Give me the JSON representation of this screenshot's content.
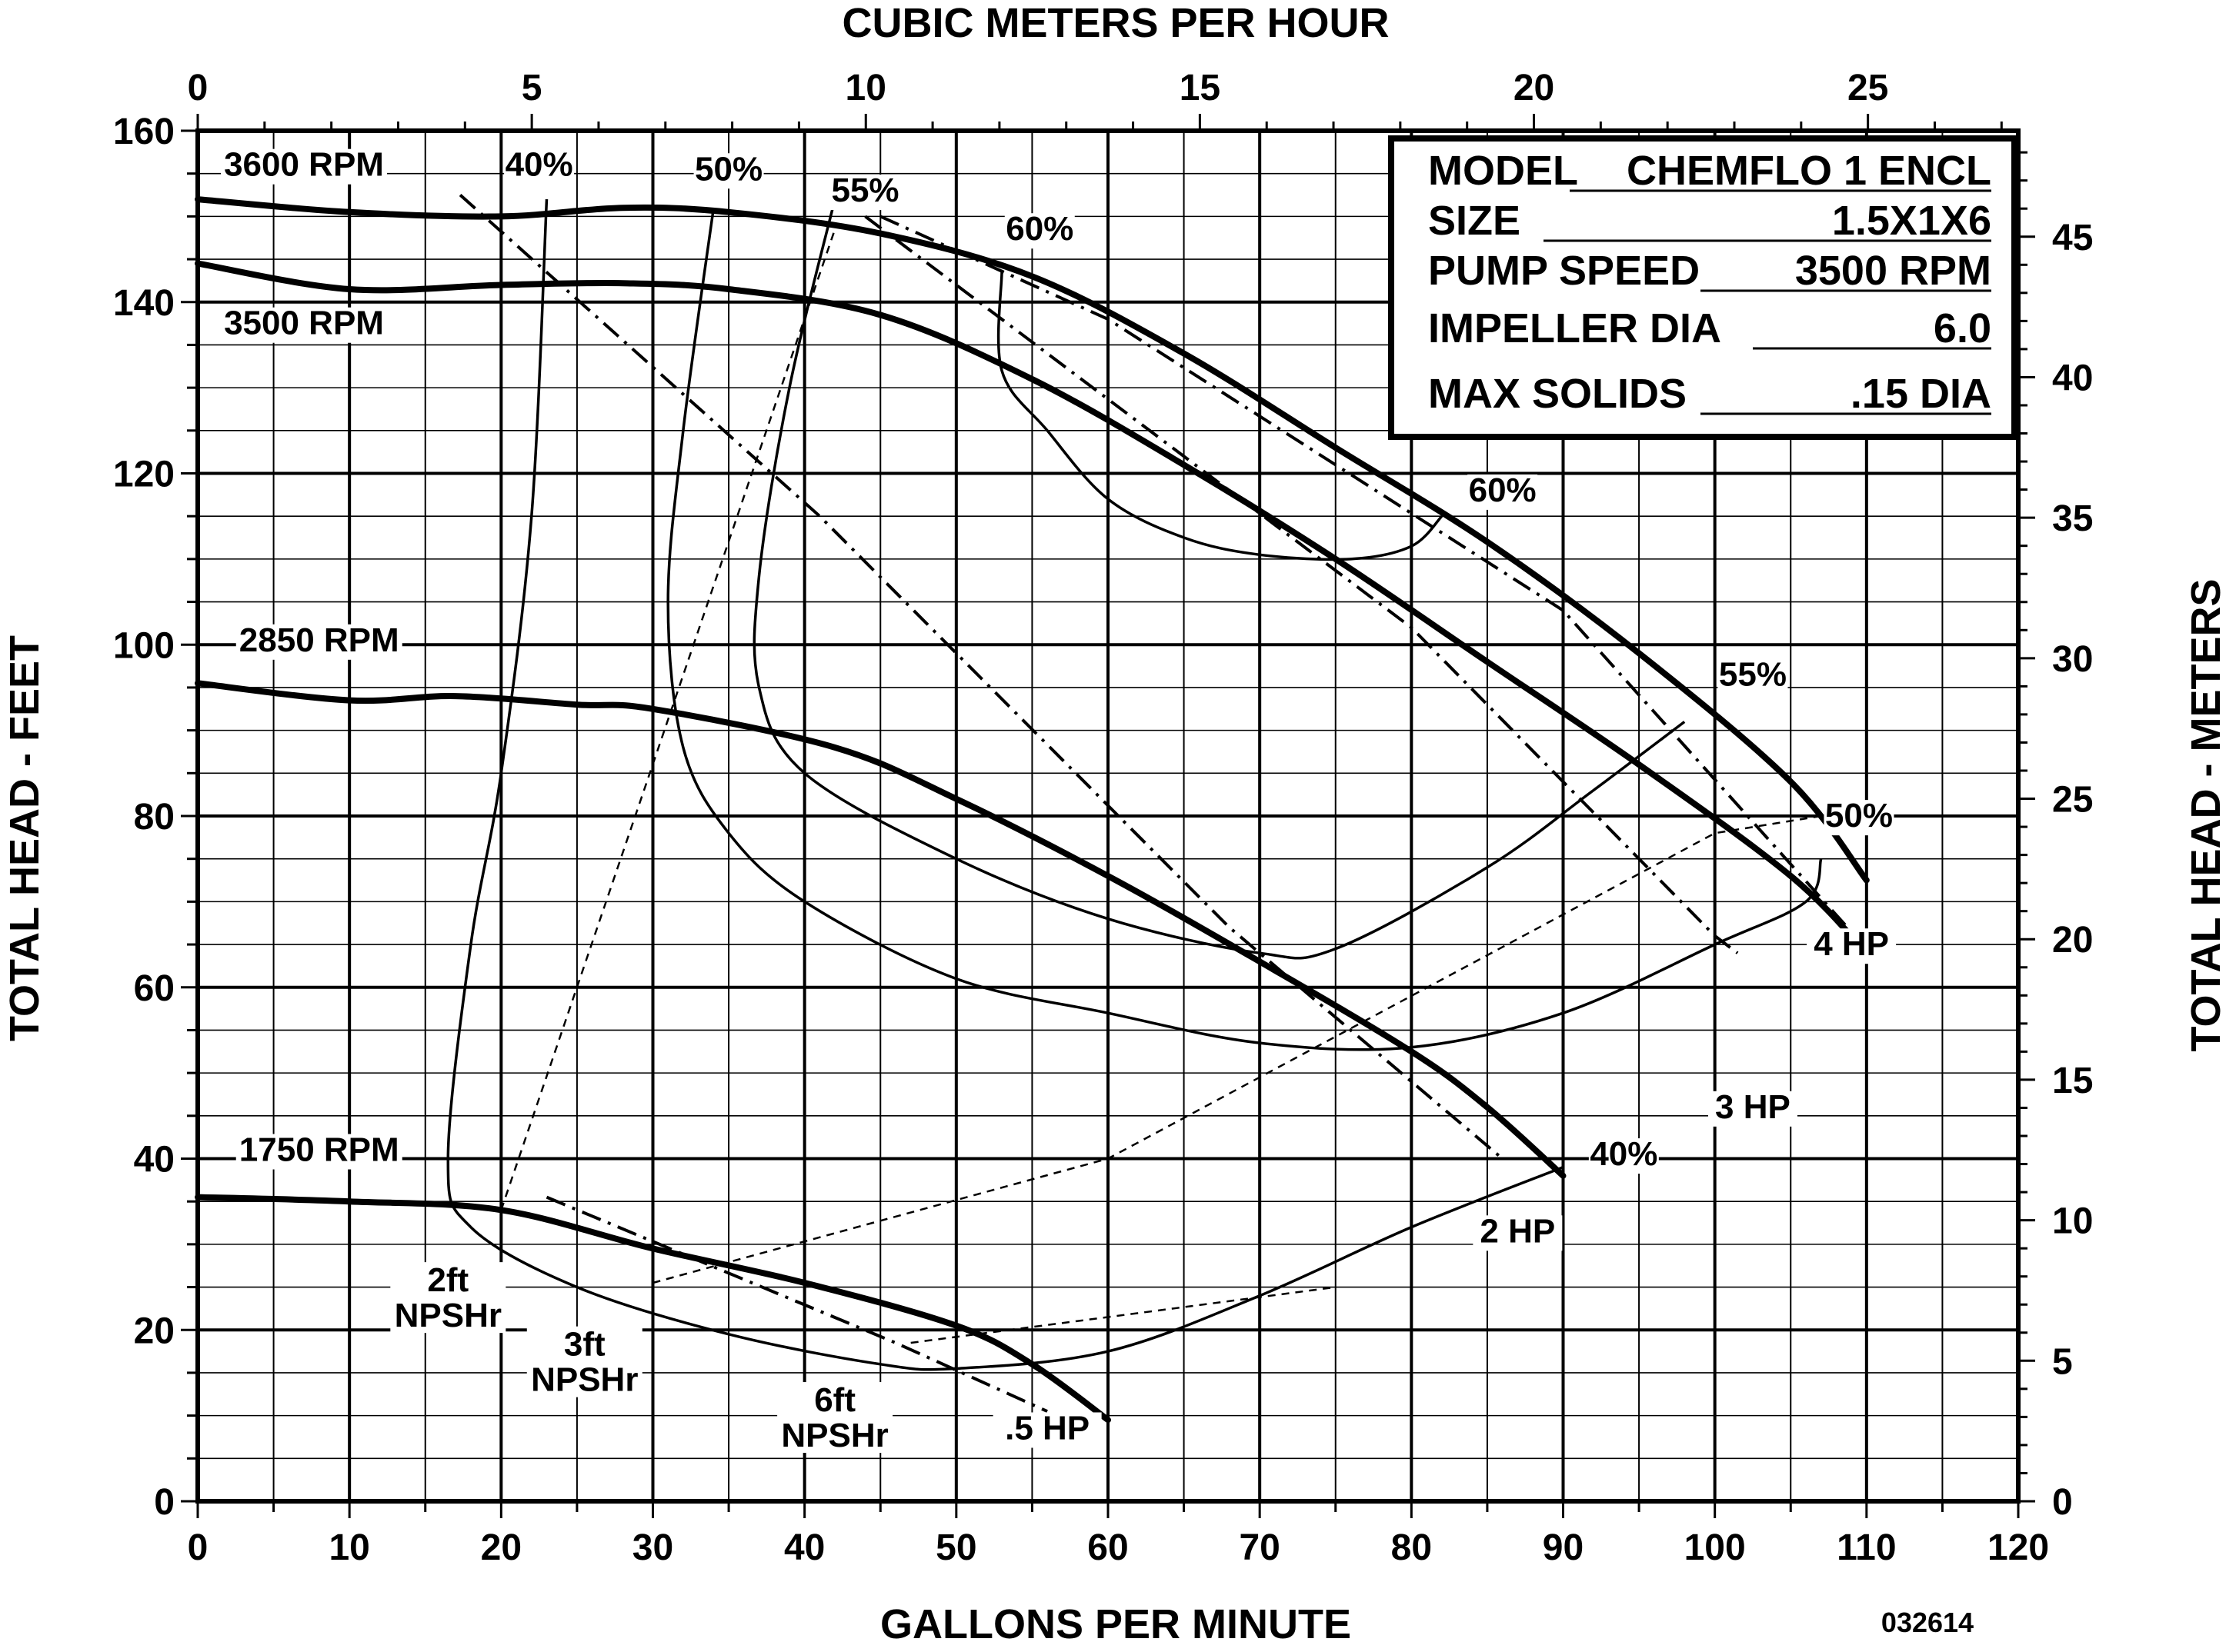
{
  "chart_data": {
    "type": "line",
    "title": "",
    "xlabel": "GALLONS PER MINUTE",
    "ylabel": "TOTAL HEAD - FEET",
    "x2label": "CUBIC METERS PER HOUR",
    "y2label": "TOTAL HEAD - METERS",
    "xlim": [
      0,
      120
    ],
    "ylim": [
      0,
      160
    ],
    "x2lim": [
      0,
      27.25
    ],
    "y2lim": [
      0,
      48.77
    ],
    "x_ticks": [
      "0",
      "10",
      "20",
      "30",
      "40",
      "50",
      "60",
      "70",
      "80",
      "90",
      "100",
      "110",
      "120"
    ],
    "y_ticks": [
      "0",
      "20",
      "40",
      "60",
      "80",
      "100",
      "120",
      "140",
      "160"
    ],
    "x2_ticks": [
      "0",
      "5",
      "10",
      "15",
      "20",
      "25"
    ],
    "y2_ticks": [
      "0",
      "5",
      "10",
      "15",
      "20",
      "25",
      "30",
      "35",
      "40",
      "45"
    ],
    "grid": true,
    "figure_code": "032614",
    "info_box": {
      "rows": [
        {
          "label": "MODEL",
          "value": "CHEMFLO 1 ENCL"
        },
        {
          "label": "SIZE",
          "value": "1.5X1X6"
        },
        {
          "label": "PUMP SPEED",
          "value": "3500 RPM"
        },
        {
          "label": "IMPELLER DIA",
          "value": "6.0"
        },
        {
          "label": "MAX SOLIDS",
          "value": ".15 DIA"
        }
      ]
    },
    "head_curves": [
      {
        "name": "3600 RPM",
        "label_x": 7,
        "label_y": 155,
        "points": [
          [
            0,
            152
          ],
          [
            10,
            150.5
          ],
          [
            20,
            150
          ],
          [
            28,
            151
          ],
          [
            35,
            150.5
          ],
          [
            45,
            148
          ],
          [
            55,
            143
          ],
          [
            65,
            134
          ],
          [
            75,
            123
          ],
          [
            85,
            112
          ],
          [
            95,
            99
          ],
          [
            105,
            84
          ],
          [
            110,
            72.5
          ]
        ]
      },
      {
        "name": "3500 RPM",
        "label_x": 7,
        "label_y": 136.5,
        "points": [
          [
            0,
            144.5
          ],
          [
            10,
            141.5
          ],
          [
            20,
            142
          ],
          [
            28,
            142.2
          ],
          [
            35,
            141.5
          ],
          [
            45,
            138.5
          ],
          [
            55,
            131
          ],
          [
            65,
            121
          ],
          [
            75,
            110
          ],
          [
            85,
            98
          ],
          [
            95,
            86
          ],
          [
            105,
            73
          ],
          [
            110,
            64
          ]
        ]
      },
      {
        "name": "2850 RPM",
        "label_x": 8,
        "label_y": 99.5,
        "points": [
          [
            0,
            95.5
          ],
          [
            10,
            93.5
          ],
          [
            17,
            94
          ],
          [
            25,
            93
          ],
          [
            30,
            92.5
          ],
          [
            42,
            88
          ],
          [
            50,
            82
          ],
          [
            60,
            73
          ],
          [
            70,
            63
          ],
          [
            80,
            52.5
          ],
          [
            85,
            46
          ],
          [
            90,
            38
          ]
        ]
      },
      {
        "name": "1750 RPM",
        "label_x": 8,
        "label_y": 40,
        "points": [
          [
            0,
            35.5
          ],
          [
            10,
            35
          ],
          [
            20,
            34
          ],
          [
            30,
            29.5
          ],
          [
            40,
            25.5
          ],
          [
            50,
            20.5
          ],
          [
            55,
            16
          ],
          [
            60,
            9.5
          ]
        ]
      }
    ],
    "power_lines": [
      {
        "name": ".5 HP",
        "label_x": 56,
        "label_y": 7.5,
        "points": [
          [
            23,
            35.5
          ],
          [
            46,
            18.5
          ],
          [
            56,
            10.5
          ]
        ]
      },
      {
        "name": "2 HP",
        "label_x": 87,
        "label_y": 30.5,
        "points": [
          [
            17.3,
            152.5
          ],
          [
            41,
            115
          ],
          [
            68,
            67
          ],
          [
            86,
            40
          ]
        ]
      },
      {
        "name": "3 HP",
        "label_x": 102.5,
        "label_y": 45,
        "points": [
          [
            44,
            150
          ],
          [
            80,
            102
          ],
          [
            100,
            66
          ],
          [
            101.5,
            64
          ]
        ]
      },
      {
        "name": "4 HP",
        "label_x": 109,
        "label_y": 64,
        "points": [
          [
            45,
            150
          ],
          [
            60,
            138
          ],
          [
            90,
            104
          ],
          [
            110,
            64.5
          ]
        ]
      }
    ],
    "efficiency_curves": [
      {
        "name": "40%",
        "label_x": 22.5,
        "label_y": 155,
        "label_x2": 94,
        "label_y2": 39.5,
        "points": [
          [
            23,
            152
          ],
          [
            22,
            115
          ],
          [
            20,
            85
          ],
          [
            18,
            65
          ],
          [
            16.5,
            40
          ],
          [
            18,
            32
          ],
          [
            25,
            25
          ],
          [
            35,
            19.5
          ],
          [
            45,
            16
          ],
          [
            50,
            15.5
          ],
          [
            60,
            17.5
          ],
          [
            70,
            24
          ],
          [
            80,
            32
          ],
          [
            90,
            39
          ]
        ]
      },
      {
        "name": "50%",
        "label_x": 35,
        "label_y": 154.5,
        "label_x2": 109.5,
        "label_y2": 79,
        "points": [
          [
            34,
            151
          ],
          [
            32,
            125
          ],
          [
            31,
            105
          ],
          [
            32,
            88
          ],
          [
            35,
            78
          ],
          [
            40,
            70
          ],
          [
            50,
            61
          ],
          [
            60,
            57
          ],
          [
            70,
            53.5
          ],
          [
            80,
            53
          ],
          [
            90,
            57
          ],
          [
            100,
            65
          ],
          [
            106,
            70
          ],
          [
            107,
            75
          ]
        ]
      },
      {
        "name": "55%",
        "label_x": 44,
        "label_y": 152,
        "label_x2": 102.5,
        "label_y2": 95.5,
        "points": [
          [
            42,
            152
          ],
          [
            39,
            130
          ],
          [
            37,
            108
          ],
          [
            37,
            95
          ],
          [
            40,
            85
          ],
          [
            50,
            75
          ],
          [
            60,
            68
          ],
          [
            70,
            64
          ],
          [
            75,
            64.5
          ],
          [
            85,
            74
          ],
          [
            92,
            83
          ],
          [
            98,
            91
          ]
        ]
      },
      {
        "name": "60%",
        "label_x": 55.5,
        "label_y": 147.5,
        "label_x2": 86,
        "label_y2": 117,
        "points": [
          [
            53,
            143.5
          ],
          [
            53,
            132
          ],
          [
            56,
            125
          ],
          [
            60,
            117
          ],
          [
            65,
            112.5
          ],
          [
            70,
            110.5
          ],
          [
            76,
            110
          ],
          [
            80,
            111.5
          ],
          [
            82,
            115
          ]
        ]
      }
    ],
    "npshr_lines": [
      {
        "name": "2ft NPSHr",
        "label_lines": [
          "2ft",
          "NPSHr"
        ],
        "label_x": 16.5,
        "label_y": 24.5,
        "points": [
          [
            20,
            34
          ],
          [
            42,
            148.5
          ]
        ]
      },
      {
        "name": "3ft NPSHr",
        "label_lines": [
          "3ft",
          "NPSHr"
        ],
        "label_x": 25.5,
        "label_y": 17,
        "points": [
          [
            30,
            25.5
          ],
          [
            60,
            40
          ],
          [
            100,
            78
          ],
          [
            107,
            80
          ]
        ]
      },
      {
        "name": "6ft NPSHr",
        "label_lines": [
          "6ft",
          "NPSHr"
        ],
        "label_x": 42,
        "label_y": 10.5,
        "points": [
          [
            47,
            18.5
          ],
          [
            60,
            21.5
          ],
          [
            75,
            25
          ]
        ]
      }
    ]
  }
}
